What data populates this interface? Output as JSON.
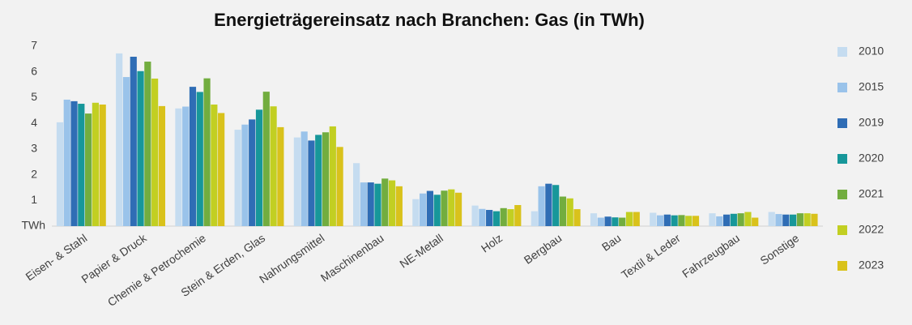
{
  "chart_data": {
    "type": "bar",
    "title": "Energieträgereinsatz nach Branchen: Gas (in TWh)",
    "categories": [
      "Eisen- & Stahl",
      "Papier & Druck",
      "Chemie & Petrochemie",
      "Stein & Erden, Glas",
      "Nahrungsmittel",
      "Maschinenbau",
      "NE-Metall",
      "Holz",
      "Bergbau",
      "Bau",
      "Textil & Leder",
      "Fahrzeugbau",
      "Sonstige"
    ],
    "series": [
      {
        "name": "2010",
        "color": "#c5dcf0",
        "values": [
          4.04,
          6.72,
          4.58,
          3.75,
          3.45,
          2.45,
          1.05,
          0.8,
          0.58,
          0.5,
          0.52,
          0.5,
          0.55
        ]
      },
      {
        "name": "2015",
        "color": "#9ac3ea",
        "values": [
          4.92,
          5.8,
          4.65,
          3.95,
          3.68,
          1.7,
          1.27,
          0.67,
          1.55,
          0.33,
          0.42,
          0.38,
          0.47
        ]
      },
      {
        "name": "2019",
        "color": "#2f6db5",
        "values": [
          4.86,
          6.59,
          5.42,
          4.15,
          3.33,
          1.7,
          1.37,
          0.63,
          1.65,
          0.37,
          0.45,
          0.45,
          0.45
        ]
      },
      {
        "name": "2020",
        "color": "#17979a",
        "values": [
          4.76,
          6.03,
          5.22,
          4.53,
          3.55,
          1.65,
          1.22,
          0.58,
          1.6,
          0.34,
          0.42,
          0.48,
          0.45
        ]
      },
      {
        "name": "2021",
        "color": "#72ad3f",
        "values": [
          4.38,
          6.4,
          5.75,
          5.23,
          3.65,
          1.85,
          1.38,
          0.7,
          1.15,
          0.33,
          0.43,
          0.5,
          0.5
        ]
      },
      {
        "name": "2022",
        "color": "#c2cf22",
        "values": [
          4.8,
          5.74,
          4.73,
          4.66,
          3.88,
          1.78,
          1.43,
          0.66,
          1.08,
          0.55,
          0.4,
          0.55,
          0.5
        ]
      },
      {
        "name": "2023",
        "color": "#d9c21b",
        "values": [
          4.73,
          4.67,
          4.4,
          3.85,
          3.08,
          1.55,
          1.3,
          0.82,
          0.66,
          0.55,
          0.4,
          0.33,
          0.48
        ]
      }
    ],
    "ylim": [
      0,
      7
    ],
    "yticks": [
      {
        "value": 0,
        "label": "TWh"
      },
      1,
      2,
      3,
      4,
      5,
      6,
      7
    ],
    "grid": false,
    "legend": "right"
  }
}
